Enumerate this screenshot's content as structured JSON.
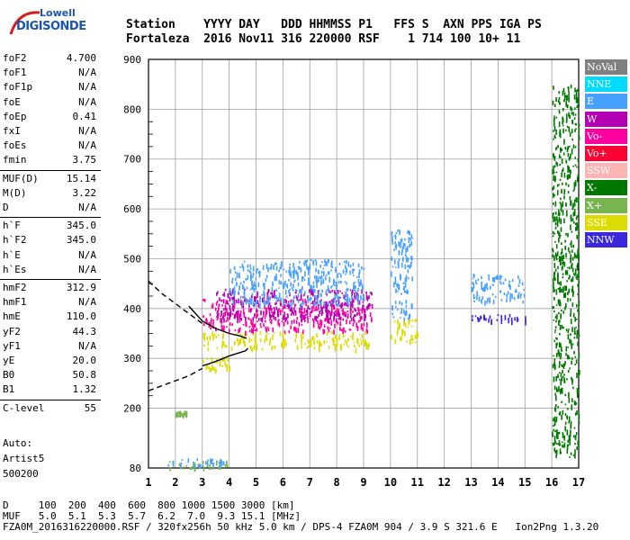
{
  "logo": {
    "line1": "Lowell",
    "line2": "DIGISONDE"
  },
  "header": {
    "row1": "Station    YYYY DAY   DDD HHMMSS P1   FFS S  AXN PPS IGA PS",
    "row2": "Fortaleza  2016 Nov11 316 220000 RSF    1 714 100 10+ 11"
  },
  "params": [
    {
      "k": "foF2",
      "v": "4.700"
    },
    {
      "k": "foF1",
      "v": "N/A"
    },
    {
      "k": "foF1p",
      "v": "N/A"
    },
    {
      "k": "foE",
      "v": "N/A"
    },
    {
      "k": "foEp",
      "v": "0.41"
    },
    {
      "k": "fxI",
      "v": "N/A"
    },
    {
      "k": "foEs",
      "v": "N/A"
    },
    {
      "k": "fmin",
      "v": "3.75"
    },
    {
      "k": "MUF(D)",
      "v": "15.14"
    },
    {
      "k": "M(D)",
      "v": "3.22"
    },
    {
      "k": "D",
      "v": "N/A"
    },
    {
      "k": "h`F",
      "v": "345.0"
    },
    {
      "k": "h`F2",
      "v": "345.0"
    },
    {
      "k": "h`E",
      "v": "N/A"
    },
    {
      "k": "h`Es",
      "v": "N/A"
    },
    {
      "k": "hmF2",
      "v": "312.9"
    },
    {
      "k": "hmF1",
      "v": "N/A"
    },
    {
      "k": "hmE",
      "v": "110.0"
    },
    {
      "k": "yF2",
      "v": "44.3"
    },
    {
      "k": "yF1",
      "v": "N/A"
    },
    {
      "k": "yE",
      "v": "20.0"
    },
    {
      "k": "B0",
      "v": "50.8"
    },
    {
      "k": "B1",
      "v": "1.32"
    },
    {
      "k": "C-level",
      "v": "55"
    }
  ],
  "auto": {
    "line1": "Auto:",
    "line2": "Artist5",
    "line3": "500200"
  },
  "legend": [
    {
      "label": "NoVal",
      "color": "#808080"
    },
    {
      "label": "NNE",
      "color": "#00dcff"
    },
    {
      "label": "E",
      "color": "#46a0ff"
    },
    {
      "label": "W",
      "color": "#b400b4"
    },
    {
      "label": "Vo-",
      "color": "#ff00a0"
    },
    {
      "label": "Vo+",
      "color": "#ff0032"
    },
    {
      "label": "SSW",
      "color": "#ffb4b4"
    },
    {
      "label": "X-",
      "color": "#007800"
    },
    {
      "label": "X+",
      "color": "#78b450"
    },
    {
      "label": "SSE",
      "color": "#dcdc00"
    },
    {
      "label": "NNW",
      "color": "#3c28dc"
    }
  ],
  "footer": {
    "d_row": "D     100  200  400  600  800 1000 1500 3000 [km]",
    "muf_row": "MUF   5.0  5.1  5.3  5.7  6.2  7.0  9.3 15.1 [MHz]",
    "file_row": "FZA0M_2016316220000.RSF / 320fx256h 50 kHz 5.0 km / DPS-4 FZA0M 904 / 3.9 S 321.6 E   Ion2Png 1.3.20"
  },
  "chart_data": {
    "type": "scatter",
    "xlim": [
      1,
      17
    ],
    "ylim": [
      80,
      900
    ],
    "xticks": [
      "1",
      "2",
      "3",
      "4",
      "5",
      "6",
      "7",
      "8",
      "9",
      "10",
      "11",
      "12",
      "13",
      "14",
      "15",
      "16",
      "17"
    ],
    "yticks": [
      "80",
      "200",
      "300",
      "400",
      "500",
      "600",
      "700",
      "800",
      "900"
    ],
    "grid": true,
    "traces": [
      {
        "name": "",
        "style": "solid",
        "x": [
          3.0,
          3.3,
          3.7,
          4.0,
          4.3,
          4.6,
          4.7
        ],
        "y": [
          285,
          290,
          298,
          305,
          310,
          315,
          320
        ]
      },
      {
        "name": "",
        "style": "solid",
        "x": [
          2.5,
          3.0,
          3.5,
          4.0,
          4.4,
          4.65
        ],
        "y": [
          405,
          375,
          360,
          350,
          345,
          340
        ]
      },
      {
        "name": "",
        "style": "dashed",
        "x": [
          1.0,
          1.5,
          2.0,
          2.5,
          3.0
        ],
        "y": [
          455,
          430,
          410,
          390,
          370
        ]
      },
      {
        "name": "",
        "style": "dashed",
        "x": [
          1.0,
          1.5,
          2.0,
          2.5,
          3.0
        ],
        "y": [
          235,
          245,
          255,
          265,
          280
        ]
      }
    ],
    "clusters": [
      {
        "color": "#dcdc00",
        "x": [
          3.0,
          9.2
        ],
        "y": [
          320,
          355
        ]
      },
      {
        "color": "#dcdc00",
        "x": [
          3.0,
          4.0
        ],
        "y": [
          280,
          305
        ]
      },
      {
        "color": "#ff00a0",
        "x": [
          3.0,
          9.3
        ],
        "y": [
          355,
          420
        ]
      },
      {
        "color": "#b400b4",
        "x": [
          3.5,
          9.3
        ],
        "y": [
          380,
          440
        ]
      },
      {
        "color": "#46a0ff",
        "x": [
          4.0,
          9.0
        ],
        "y": [
          410,
          500
        ]
      },
      {
        "color": "#46a0ff",
        "x": [
          10.0,
          10.8
        ],
        "y": [
          380,
          560
        ]
      },
      {
        "color": "#dcdc00",
        "x": [
          10.0,
          11.0
        ],
        "y": [
          330,
          380
        ]
      },
      {
        "color": "#3c28dc",
        "x": [
          13.0,
          15.0
        ],
        "y": [
          375,
          390
        ]
      },
      {
        "color": "#46a0ff",
        "x": [
          13.0,
          15.0
        ],
        "y": [
          415,
          470
        ]
      },
      {
        "color": "#78b450",
        "x": [
          1.7,
          4.0
        ],
        "y": [
          80,
          95
        ]
      },
      {
        "color": "#46a0ff",
        "x": [
          1.7,
          3.8
        ],
        "y": [
          85,
          100
        ]
      },
      {
        "color": "#78b450",
        "x": [
          2.0,
          2.4
        ],
        "y": [
          188,
          195
        ]
      },
      {
        "color": "#007800",
        "x": [
          16.0,
          17.0
        ],
        "y": [
          100,
          850
        ]
      }
    ]
  }
}
